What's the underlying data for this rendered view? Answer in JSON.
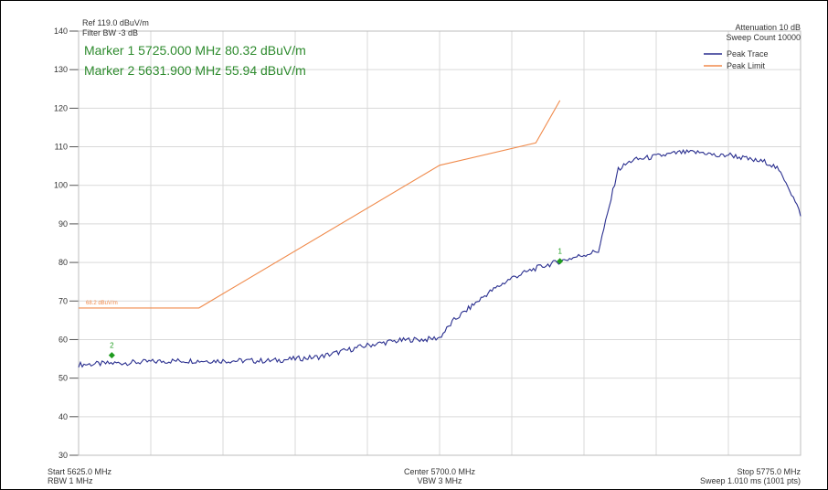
{
  "header": {
    "ref": "Ref 119.0 dBuV/m",
    "filter": "Filter BW -3 dB",
    "attenuation": "Attenuation 10 dB",
    "sweep_count": "Sweep Count 10000"
  },
  "markers_readout": [
    "Marker 1 5725.000 MHz 80.32 dBuV/m",
    "Marker 2 5631.900 MHz 55.94 dBuV/m"
  ],
  "footer": {
    "start": "Start 5625.0 MHz",
    "rbw": "RBW 1 MHz",
    "center": "Center 5700.0 MHz",
    "vbw": "VBW 3 MHz",
    "stop": "Stop 5775.0 MHz",
    "sweep": "Sweep 1.010 ms (1001 pts)"
  },
  "limit_label": "68.2 dBuV/m",
  "colors": {
    "trace": "#2a2f8f",
    "limit": "#f08a4b",
    "marker": "#1f9b1f",
    "grid": "#d9d9d9"
  },
  "chart_data": {
    "type": "line",
    "xlim": [
      5625.0,
      5775.0
    ],
    "ylim": [
      30,
      140
    ],
    "y_ticks": [
      30,
      40,
      50,
      60,
      70,
      80,
      90,
      100,
      110,
      120,
      130,
      140
    ],
    "legend": {
      "placement": "top-right",
      "entries": [
        "Peak Trace",
        "Peak Limit"
      ]
    },
    "grid": true,
    "series": [
      {
        "name": "Peak Trace",
        "x": [
          5625.0,
          5635.0,
          5645.0,
          5655.0,
          5665.0,
          5670.0,
          5675.0,
          5680.0,
          5685.0,
          5690.0,
          5694.0,
          5697.0,
          5700.0,
          5703.0,
          5706.0,
          5710.0,
          5715.0,
          5720.0,
          5725.0,
          5730.0,
          5733.0,
          5735.0,
          5737.0,
          5740.0,
          5745.0,
          5750.0,
          5755.0,
          5758.0,
          5760.0,
          5765.0,
          5768.0,
          5770.0,
          5772.0,
          5775.0
        ],
        "y": [
          53.5,
          54.0,
          54.5,
          54.5,
          54.5,
          55.0,
          55.5,
          57.0,
          58.5,
          59.5,
          60.0,
          60.0,
          60.5,
          65.0,
          68.0,
          72.0,
          76.0,
          78.5,
          80.3,
          82.0,
          83.0,
          93.0,
          104.0,
          106.5,
          107.5,
          108.5,
          108.5,
          107.5,
          108.0,
          106.5,
          106.0,
          104.5,
          101.0,
          92.5
        ]
      },
      {
        "name": "Peak Limit",
        "x": [
          5625.0,
          5650.0,
          5700.0,
          5720.0,
          5725.0
        ],
        "y": [
          68.2,
          68.2,
          105.2,
          111.0,
          122.0
        ]
      }
    ],
    "markers": [
      {
        "label": "1",
        "x": 5725.0,
        "y": 80.32
      },
      {
        "label": "2",
        "x": 5631.9,
        "y": 55.94
      }
    ]
  }
}
